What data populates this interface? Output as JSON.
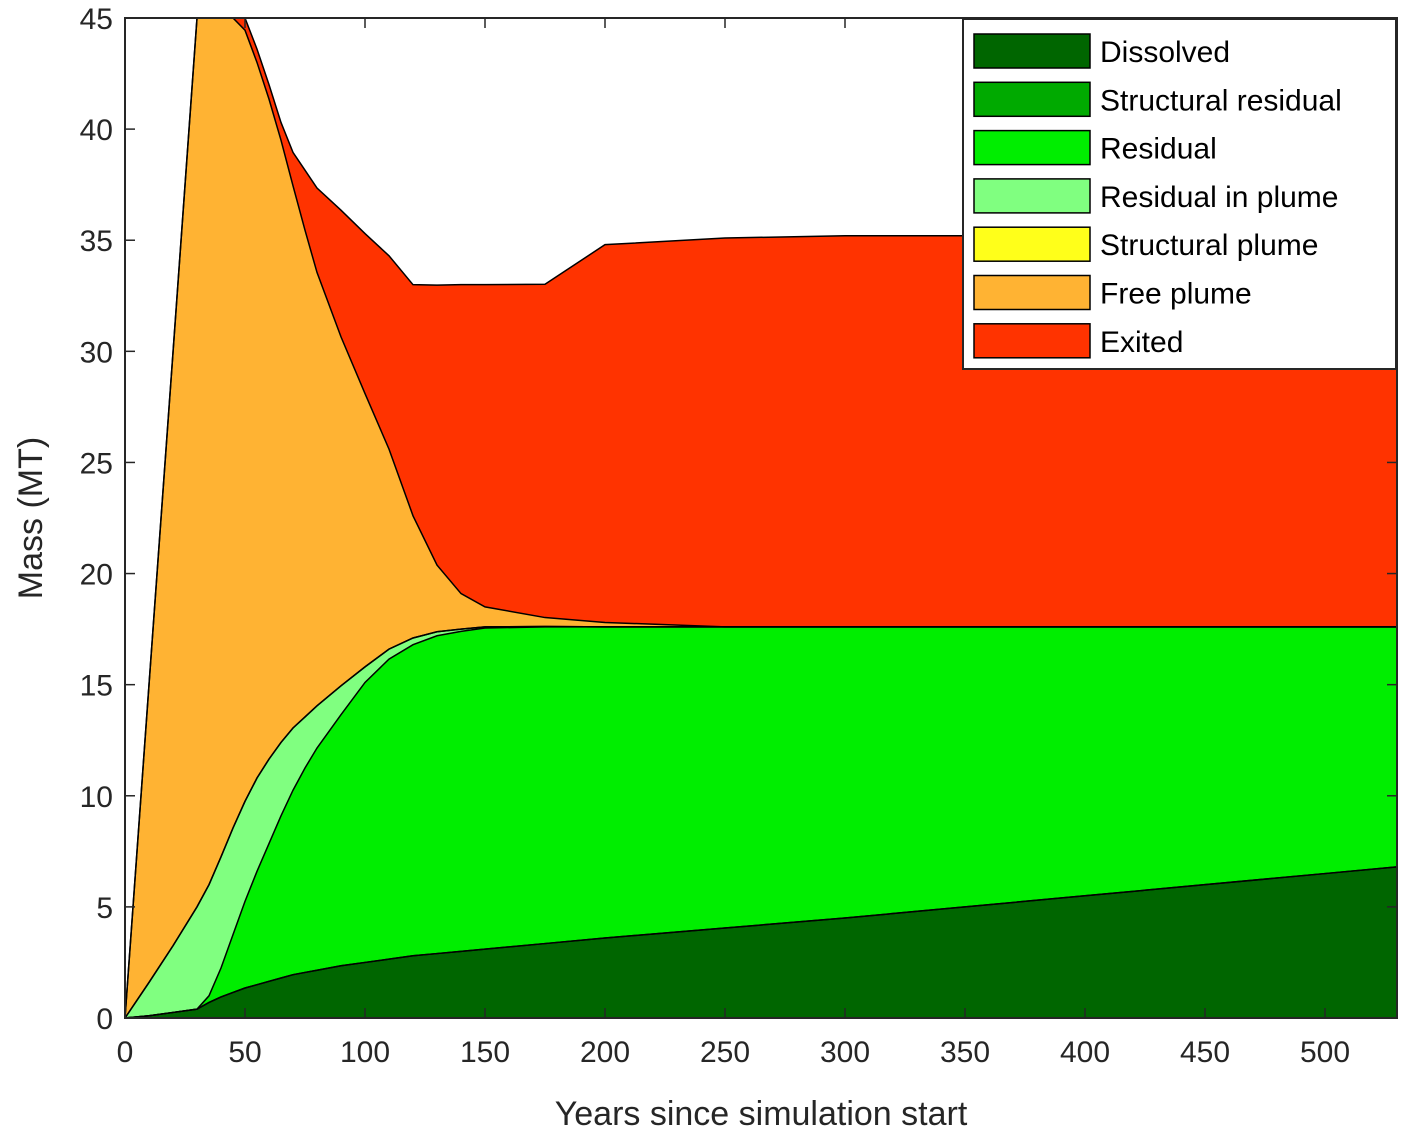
{
  "chart_data": {
    "type": "area",
    "title": "",
    "xlabel": "Years since simulation start",
    "ylabel": "Mass (MT)",
    "xlim": [
      0,
      530
    ],
    "ylim": [
      0,
      45
    ],
    "xticks": [
      0,
      50,
      100,
      150,
      200,
      250,
      300,
      350,
      400,
      450,
      500
    ],
    "yticks": [
      0,
      5,
      10,
      15,
      20,
      25,
      30,
      35,
      40,
      45
    ],
    "grid": false,
    "legend_position": "top-right",
    "x": [
      0,
      10,
      20,
      30,
      35,
      40,
      45,
      50,
      55,
      60,
      65,
      70,
      75,
      80,
      90,
      100,
      110,
      120,
      130,
      140,
      150,
      175,
      200,
      250,
      300,
      350,
      400,
      450,
      500,
      530
    ],
    "series": [
      {
        "name": "Dissolved",
        "color": "#006600",
        "values": [
          0,
          0.1,
          0.25,
          0.4,
          0.7,
          0.95,
          1.15,
          1.35,
          1.5,
          1.65,
          1.8,
          1.95,
          2.05,
          2.15,
          2.35,
          2.5,
          2.65,
          2.8,
          2.9,
          3.0,
          3.1,
          3.35,
          3.6,
          4.05,
          4.5,
          5.0,
          5.5,
          6.0,
          6.5,
          6.8
        ]
      },
      {
        "name": "Structural residual",
        "color": "#00aa00",
        "values": [
          0,
          0,
          0,
          0,
          0,
          0,
          0,
          0,
          0,
          0,
          0,
          0,
          0,
          0,
          0,
          0,
          0,
          0,
          0,
          0,
          0,
          0,
          0,
          0,
          0,
          0,
          0,
          0,
          0,
          0
        ]
      },
      {
        "name": "Residual",
        "color": "#00ee00",
        "values": [
          0,
          0,
          0,
          0,
          0.3,
          1.3,
          2.6,
          3.9,
          5.1,
          6.2,
          7.3,
          8.3,
          9.2,
          10.0,
          11.3,
          12.6,
          13.5,
          14.0,
          14.3,
          14.4,
          14.45,
          14.25,
          14.0,
          13.55,
          13.1,
          12.6,
          12.1,
          11.6,
          11.1,
          10.8
        ]
      },
      {
        "name": "Residual in plume",
        "color": "#80ff80",
        "values": [
          0,
          1.5,
          3.0,
          4.6,
          5.0,
          5.0,
          4.8,
          4.5,
          4.2,
          3.8,
          3.3,
          2.8,
          2.3,
          1.9,
          1.3,
          0.7,
          0.45,
          0.3,
          0.18,
          0.1,
          0.05,
          0.02,
          0,
          0,
          0,
          0,
          0,
          0,
          0,
          0
        ]
      },
      {
        "name": "Structural plume",
        "color": "#ffff1a",
        "values": [
          0,
          0,
          0,
          0,
          0,
          0,
          0,
          0,
          0,
          0,
          0,
          0,
          0,
          0,
          0,
          0,
          0,
          0,
          0,
          0,
          0,
          0,
          0,
          0,
          0,
          0,
          0,
          0,
          0,
          0
        ]
      },
      {
        "name": "Free plume",
        "color": "#ffb333",
        "values": [
          0,
          13.4,
          26.7,
          40.0,
          39.0,
          38.0,
          36.6,
          34.7,
          32.2,
          29.7,
          27.1,
          24.4,
          21.9,
          19.5,
          15.7,
          12.3,
          9.0,
          5.5,
          3.0,
          1.6,
          0.9,
          0.4,
          0.2,
          0,
          0,
          0,
          0,
          0,
          0,
          0
        ]
      },
      {
        "name": "Exited",
        "color": "#ff3300",
        "values": [
          0,
          0,
          0,
          0,
          0,
          0,
          0.45,
          0.55,
          0.6,
          0.65,
          0.8,
          1.5,
          2.7,
          3.8,
          5.7,
          7.2,
          8.7,
          10.4,
          12.6,
          13.9,
          14.5,
          15.0,
          17.0,
          17.5,
          17.6,
          17.6,
          17.6,
          17.6,
          17.6,
          17.6
        ]
      }
    ]
  }
}
